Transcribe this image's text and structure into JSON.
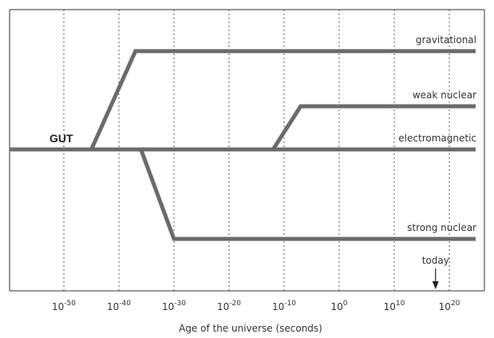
{
  "chart_data": {
    "type": "line",
    "xlabel": "Age of the universe (seconds)",
    "x_scale": "log",
    "x_ticks": [
      {
        "base": "10",
        "exp": "-50",
        "value": -50
      },
      {
        "base": "10",
        "exp": "-40",
        "value": -40
      },
      {
        "base": "10",
        "exp": "-30",
        "value": -30
      },
      {
        "base": "10",
        "exp": "-20",
        "value": -20
      },
      {
        "base": "10",
        "exp": "-10",
        "value": -10
      },
      {
        "base": "10",
        "exp": "0",
        "value": 0
      },
      {
        "base": "10",
        "exp": "10",
        "value": 10
      },
      {
        "base": "10",
        "exp": "20",
        "value": 20
      }
    ],
    "gut_label": "GUT",
    "series": [
      {
        "name": "gravitational",
        "level": 4,
        "split_from": [
          -45,
          -37
        ]
      },
      {
        "name": "weak nuclear",
        "level": 3,
        "split_from": [
          -12,
          -7
        ]
      },
      {
        "name": "electromagnetic",
        "level": 2
      },
      {
        "name": "strong nuclear",
        "level": 1,
        "split_from": [
          -36,
          -30
        ]
      }
    ],
    "annotation": {
      "text": "today",
      "x": 17.5
    }
  }
}
